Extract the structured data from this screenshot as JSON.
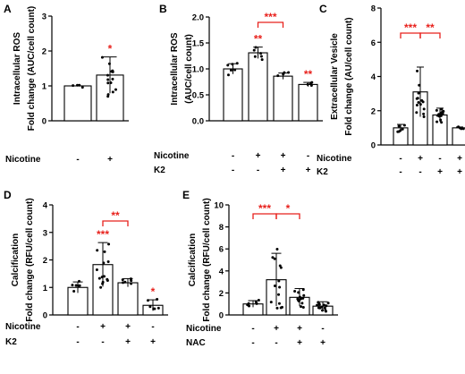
{
  "panels": [
    {
      "letter": "A",
      "ylabel_lines": [
        "Intracellular ROS",
        "Fold change (AUC/cell count)"
      ],
      "yticks": [
        "0",
        "1",
        "2",
        "3"
      ]
    },
    {
      "letter": "B",
      "ylabel_lines": [
        "Intracellular ROS",
        "(AUC/cell count)"
      ],
      "yticks": [
        "0.0",
        "0.5",
        "1.0",
        "1.5",
        "2.0"
      ]
    },
    {
      "letter": "C",
      "ylabel_lines": [
        "Extracellular Vesicle",
        "Fold change (AU/cell count)"
      ],
      "yticks": [
        "0",
        "2",
        "4",
        "6",
        "8"
      ]
    },
    {
      "letter": "D",
      "ylabel_lines": [
        "Calcification",
        "Fold change (RFU/cell count)"
      ],
      "yticks": [
        "0",
        "1",
        "2",
        "3",
        "4"
      ]
    },
    {
      "letter": "E",
      "ylabel_lines": [
        "Calcification",
        "Fold change (RFU/cell count)"
      ],
      "yticks": [
        "0",
        "2",
        "4",
        "6",
        "8",
        "10"
      ]
    }
  ],
  "chart_data": [
    {
      "id": "A",
      "type": "bar",
      "ylim": [
        0,
        3
      ],
      "row_labels": [
        "Nicotine"
      ],
      "categories": [
        {
          "row_values": [
            "-"
          ],
          "value": 1.0,
          "err": 0.0
        },
        {
          "row_values": [
            "+"
          ],
          "value": 1.31,
          "err": 0.52
        }
      ],
      "star_labels": [
        {
          "text": "*",
          "group": 1
        }
      ],
      "brackets": []
    },
    {
      "id": "B",
      "type": "bar",
      "ylim": [
        0,
        2
      ],
      "row_labels": [
        "Nicotine",
        "K2"
      ],
      "categories": [
        {
          "row_values": [
            "-",
            "-"
          ],
          "value": 1.0,
          "err": 0.1
        },
        {
          "row_values": [
            "+",
            "-"
          ],
          "value": 1.31,
          "err": 0.11
        },
        {
          "row_values": [
            "+",
            "+"
          ],
          "value": 0.86,
          "err": 0.06
        },
        {
          "row_values": [
            "-",
            "+"
          ],
          "value": 0.7,
          "err": 0.04
        }
      ],
      "star_labels": [
        {
          "text": "**",
          "group": 1
        },
        {
          "text": "**",
          "group": 3
        }
      ],
      "brackets": [
        {
          "text": "***",
          "from": 1,
          "to": 2
        }
      ]
    },
    {
      "id": "C",
      "type": "bar",
      "ylim": [
        0,
        8
      ],
      "row_labels": [
        "Nicotine",
        "K2"
      ],
      "categories": [
        {
          "row_values": [
            "-",
            "-"
          ],
          "value": 1.0,
          "err": 0.2
        },
        {
          "row_values": [
            "+",
            "-"
          ],
          "value": 3.1,
          "err": 1.45
        },
        {
          "row_values": [
            "-",
            "+"
          ],
          "value": 1.75,
          "err": 0.4
        },
        {
          "row_values": [
            "+",
            "+"
          ],
          "value": 1.0,
          "err": 0.05
        }
      ],
      "star_labels": [],
      "brackets": [
        {
          "text": "***",
          "from": 0,
          "to": 1
        },
        {
          "text": "**",
          "from": 1,
          "to": 2
        }
      ]
    },
    {
      "id": "D",
      "type": "bar",
      "ylim": [
        0,
        4
      ],
      "row_labels": [
        "Nicotine",
        "K2"
      ],
      "categories": [
        {
          "row_values": [
            "-",
            "-"
          ],
          "value": 1.0,
          "err": 0.2
        },
        {
          "row_values": [
            "+",
            "-"
          ],
          "value": 1.83,
          "err": 0.8
        },
        {
          "row_values": [
            "+",
            "+"
          ],
          "value": 1.17,
          "err": 0.15
        },
        {
          "row_values": [
            "-",
            "+"
          ],
          "value": 0.35,
          "err": 0.2
        }
      ],
      "star_labels": [
        {
          "text": "***",
          "group": 1
        },
        {
          "text": "*",
          "group": 3
        }
      ],
      "brackets": [
        {
          "text": "**",
          "from": 1,
          "to": 2
        }
      ]
    },
    {
      "id": "E",
      "type": "bar",
      "ylim": [
        0,
        10
      ],
      "row_labels": [
        "Nicotine",
        "NAC"
      ],
      "categories": [
        {
          "row_values": [
            "-",
            "-"
          ],
          "value": 1.0,
          "err": 0.3
        },
        {
          "row_values": [
            "+",
            "-"
          ],
          "value": 3.2,
          "err": 2.4
        },
        {
          "row_values": [
            "+",
            "+"
          ],
          "value": 1.6,
          "err": 0.8
        },
        {
          "row_values": [
            "-",
            "+"
          ],
          "value": 0.8,
          "err": 0.4
        }
      ],
      "star_labels": [],
      "brackets": [
        {
          "text": "***",
          "from": 0,
          "to": 1
        },
        {
          "text": "*",
          "from": 1,
          "to": 2
        }
      ]
    }
  ],
  "colors": {
    "bar_fill": "#ffffff",
    "bar_edge": "#000000",
    "point": "#000000",
    "significance": "#e8211c"
  }
}
